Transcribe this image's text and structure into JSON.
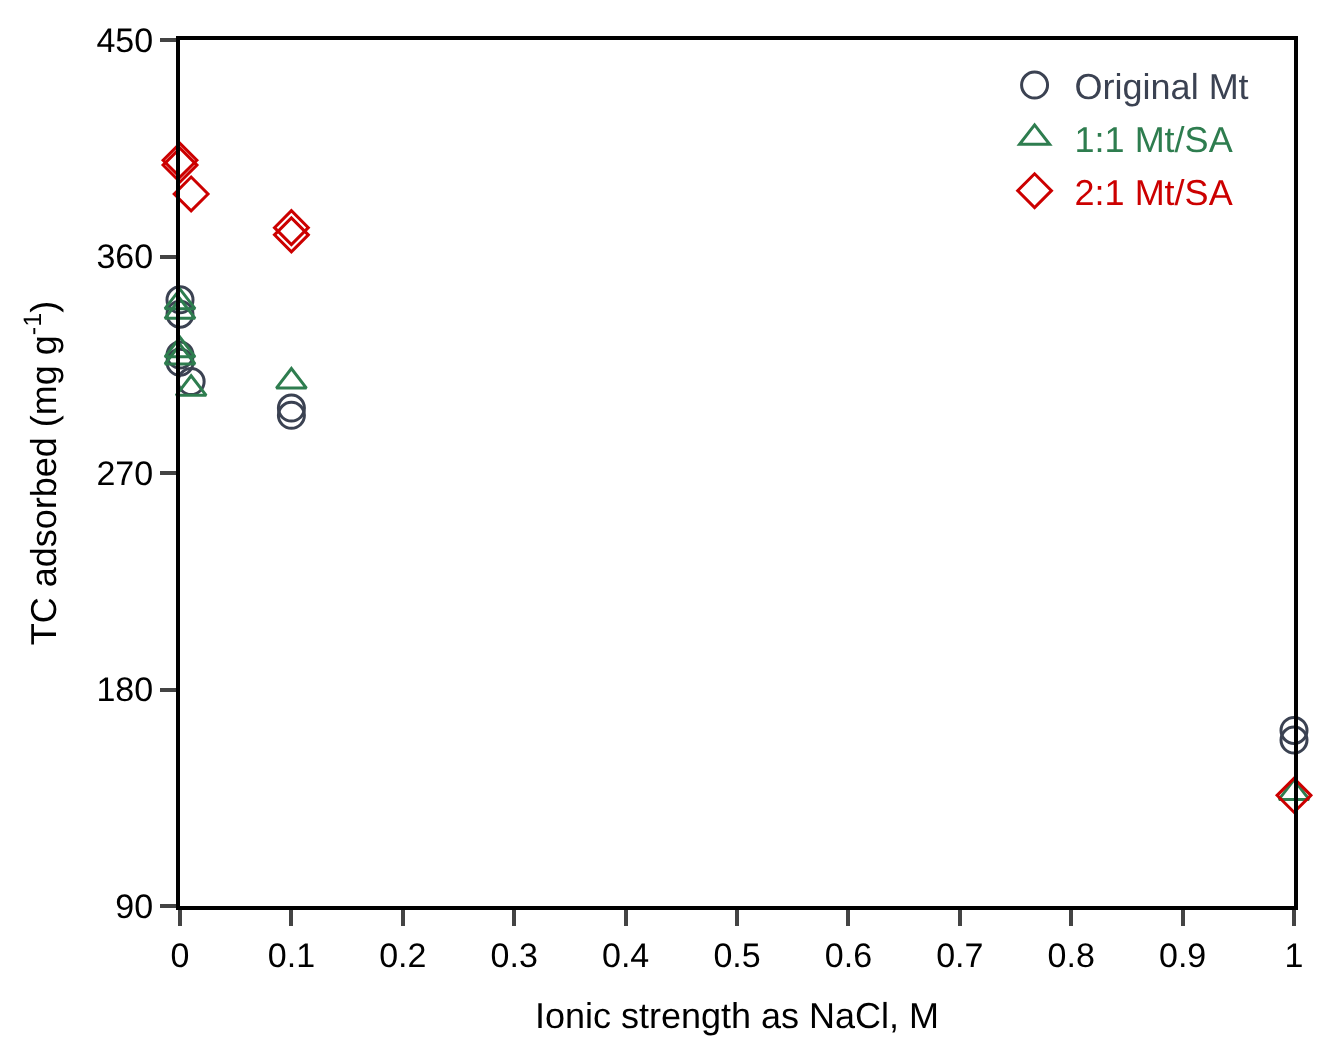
{
  "chart_data": {
    "type": "scatter",
    "xlabel": "Ionic strength as NaCl, M",
    "ylabel": "TC adsorbed (mg g$^{-1}$)",
    "xlim": [
      0,
      1
    ],
    "xticks": [
      0,
      0.1,
      0.2,
      0.3,
      0.4,
      0.5,
      0.6,
      0.7,
      0.8,
      0.9,
      1
    ],
    "ylim": [
      90,
      450
    ],
    "yticks": [
      90,
      180,
      270,
      360,
      450
    ],
    "legend": "top right",
    "series": [
      {
        "name": "Original Mt",
        "color": "#3b4252",
        "marker": "circle",
        "x": [
          0,
          0,
          0,
          0,
          0.01,
          0.1,
          0.1,
          1,
          1
        ],
        "values": [
          342,
          336,
          319,
          316,
          308,
          297,
          294,
          163,
          159
        ]
      },
      {
        "name": "1:1 Mt/SA",
        "color": "#2e7d4f",
        "marker": "triangle",
        "x": [
          0,
          0,
          0,
          0,
          0.01,
          0.1,
          1
        ],
        "values": [
          341,
          337,
          321,
          318,
          305,
          308,
          137
        ]
      },
      {
        "name": "2:1 Mt/SA",
        "color": "#cc0000",
        "marker": "diamond",
        "x": [
          0,
          0,
          0.01,
          0.1,
          0.1,
          1
        ],
        "values": [
          400,
          398,
          386,
          372,
          369,
          136
        ]
      }
    ]
  }
}
